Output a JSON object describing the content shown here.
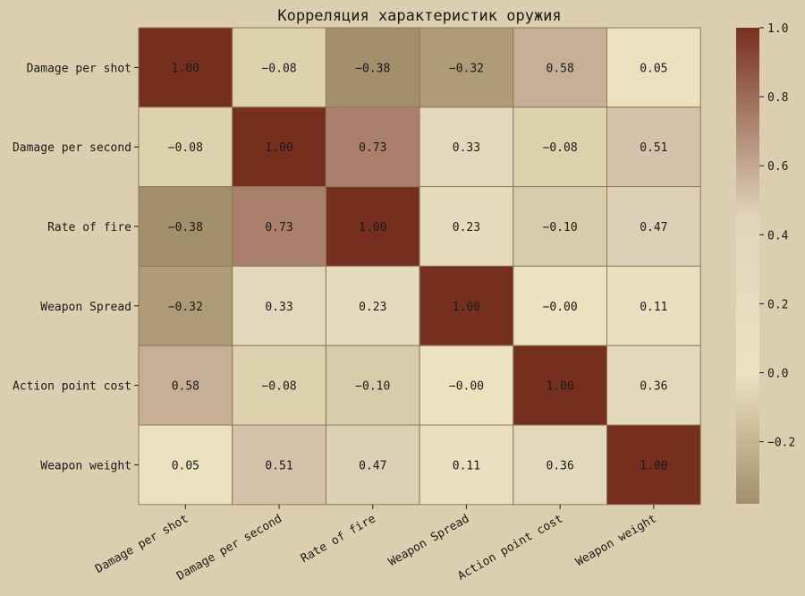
{
  "chart_data": {
    "type": "heatmap",
    "title": "Корреляция характеристик оружия",
    "xlabel": "",
    "ylabel": "",
    "row_labels": [
      "Damage per shot",
      "Damage per second",
      "Rate of fire",
      "Weapon Spread",
      "Action point cost",
      "Weapon weight"
    ],
    "col_labels": [
      "Damage per shot",
      "Damage per second",
      "Rate of fire",
      "Weapon Spread",
      "Action point cost",
      "Weapon weight"
    ],
    "values": [
      [
        1.0,
        -0.08,
        -0.38,
        -0.32,
        0.58,
        0.05
      ],
      [
        -0.08,
        1.0,
        0.73,
        0.33,
        -0.08,
        0.51
      ],
      [
        -0.38,
        0.73,
        1.0,
        0.23,
        -0.1,
        0.47
      ],
      [
        -0.32,
        0.33,
        0.23,
        1.0,
        -0.0,
        0.11
      ],
      [
        0.58,
        -0.08,
        -0.1,
        -0.0,
        1.0,
        0.36
      ],
      [
        0.05,
        0.51,
        0.47,
        0.11,
        0.36,
        1.0
      ]
    ],
    "annotation_format": "2 decimals",
    "colorbar": {
      "range": [
        -0.38,
        1.0
      ],
      "ticks": [
        1.0,
        0.8,
        0.6,
        0.4,
        0.2,
        0.0,
        -0.2
      ],
      "tick_labels": [
        "1.0",
        "0.8",
        "0.6",
        "0.4",
        "0.2",
        "0.0",
        "−0.2"
      ]
    },
    "colorscale": [
      {
        "value": -0.38,
        "color": "#a28f6b"
      },
      {
        "value": 0.0,
        "color": "#ede2c0"
      },
      {
        "value": 0.45,
        "color": "#e0d5bb"
      },
      {
        "value": 1.0,
        "color": "#762f1f"
      }
    ],
    "colors": {
      "background": "#dccfb0",
      "cell_border": "#8a7a55",
      "text": "#1a1a1a"
    }
  }
}
